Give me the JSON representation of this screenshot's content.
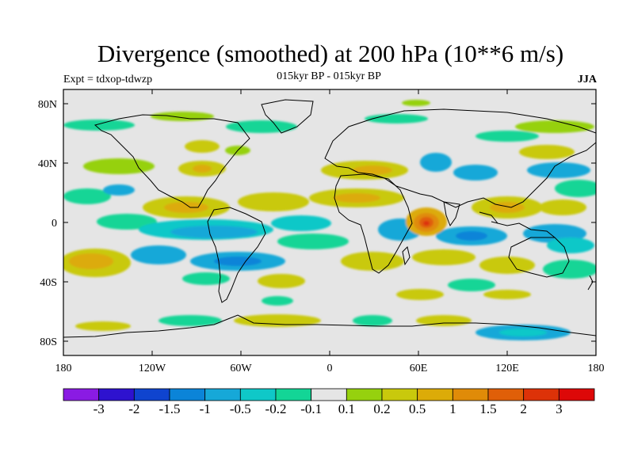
{
  "title": "Divergence (smoothed) at 200 hPa (10**6 m/s)",
  "subtitle": "015kyr BP - 015kyr BP",
  "experiment": "Expt = tdxop-tdwzp",
  "season": "JJA",
  "lat_ticks": [
    "80N",
    "40N",
    "0",
    "40S",
    "80S"
  ],
  "lon_ticks": [
    "180",
    "120W",
    "60W",
    "0",
    "60E",
    "120E",
    "180"
  ],
  "colorbar": {
    "labels": [
      "-3",
      "-2",
      "-1.5",
      "-1",
      "-0.5",
      "-0.2",
      "-0.1",
      "0.1",
      "0.2",
      "0.5",
      "1",
      "1.5",
      "2",
      "3"
    ],
    "colors": [
      "#8a1be3",
      "#2e12cf",
      "#0f44cf",
      "#0b84d8",
      "#16a8d8",
      "#0fc8c8",
      "#13d596",
      "#e5e5e5",
      "#96d10e",
      "#c9c90c",
      "#dcab08",
      "#e08b08",
      "#e05f08",
      "#dd3208",
      "#dd0808"
    ]
  }
}
